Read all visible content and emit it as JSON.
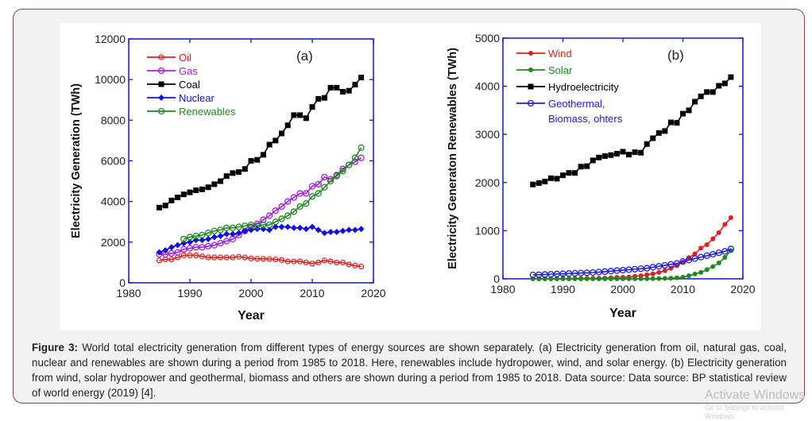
{
  "caption": {
    "label": "Figure 3:",
    "text": "World total electricity generation from different types of energy sources are shown separately. (a) Electricity generation from oil, natural gas, coal, nuclear and renewables are shown during a period from 1985 to 2018. Here, renewables include hydropower, wind, and solar energy. (b) Electricity generation from wind, solar hydropower and geothermal, biomass and others are shown during a period from 1985 to 2018. Data source: Data source: BP statistical review of world energy (2019) [4]."
  },
  "watermark": {
    "line1": "Activate Windows",
    "line2": "Go to Settings to activate Windows."
  },
  "chart_data": [
    {
      "type": "line",
      "panel_label": "(a)",
      "xlabel": "Year",
      "ylabel": "Electricity Generation (TWh)",
      "xlim": [
        1980,
        2020
      ],
      "ylim": [
        0,
        12000
      ],
      "xticks": [
        1980,
        1990,
        2000,
        2010,
        2020
      ],
      "yticks": [
        0,
        2000,
        4000,
        6000,
        8000,
        10000,
        12000
      ],
      "grid": false,
      "legend": "top-left",
      "axis_color": "#2222cc",
      "x": [
        1985,
        1986,
        1987,
        1988,
        1989,
        1990,
        1991,
        1992,
        1993,
        1994,
        1995,
        1996,
        1997,
        1998,
        1999,
        2000,
        2001,
        2002,
        2003,
        2004,
        2005,
        2006,
        2007,
        2008,
        2009,
        2010,
        2011,
        2012,
        2013,
        2014,
        2015,
        2016,
        2017,
        2018
      ],
      "series": [
        {
          "name": "Oil",
          "color": "#e02020",
          "marker": "open-circle-small",
          "values": [
            1100,
            1150,
            1150,
            1250,
            1350,
            1350,
            1350,
            1300,
            1250,
            1250,
            1250,
            1250,
            1250,
            1280,
            1250,
            1200,
            1180,
            1180,
            1170,
            1150,
            1120,
            1050,
            1050,
            1050,
            1000,
            950,
            1000,
            1100,
            1050,
            1000,
            1000,
            900,
            850,
            800
          ]
        },
        {
          "name": "Gas",
          "color": "#a020e0",
          "marker": "open-circle",
          "values": [
            1400,
            1400,
            1450,
            1500,
            1650,
            1700,
            1750,
            1750,
            1800,
            1850,
            1950,
            2050,
            2150,
            2350,
            2550,
            2750,
            2900,
            3100,
            3300,
            3550,
            3750,
            4000,
            4200,
            4400,
            4400,
            4750,
            4850,
            5200,
            5100,
            5300,
            5600,
            5800,
            5950,
            6150
          ]
        },
        {
          "name": "Coal",
          "color": "#000000",
          "marker": "filled-square",
          "values": [
            3700,
            3800,
            4050,
            4200,
            4350,
            4450,
            4550,
            4600,
            4700,
            4850,
            5000,
            5250,
            5400,
            5450,
            5600,
            6000,
            6050,
            6300,
            6800,
            7000,
            7350,
            7750,
            8250,
            8250,
            8100,
            8650,
            9050,
            9100,
            9600,
            9600,
            9400,
            9450,
            9750,
            10100
          ]
        },
        {
          "name": "Nuclear",
          "color": "#1010e0",
          "marker": "filled-diamond",
          "values": [
            1500,
            1600,
            1750,
            1850,
            1950,
            2000,
            2100,
            2100,
            2150,
            2250,
            2300,
            2400,
            2400,
            2450,
            2550,
            2600,
            2650,
            2650,
            2600,
            2750,
            2750,
            2750,
            2700,
            2700,
            2650,
            2750,
            2600,
            2450,
            2500,
            2500,
            2550,
            2600,
            2600,
            2650
          ]
        },
        {
          "name": "Renewables",
          "color": "#208a20",
          "marker": "open-circle",
          "values": [
            null,
            null,
            null,
            null,
            2150,
            2250,
            2300,
            2350,
            2450,
            2550,
            2600,
            2700,
            2700,
            2750,
            2800,
            2850,
            2800,
            2850,
            2850,
            3000,
            3150,
            3300,
            3500,
            3750,
            3900,
            4250,
            4400,
            4700,
            5000,
            5250,
            5500,
            5800,
            6150,
            6650
          ]
        }
      ]
    },
    {
      "type": "line",
      "panel_label": "(b)",
      "xlabel": "Year",
      "ylabel": "Electricity Generaton Renewables (TWh)",
      "xlim": [
        1980,
        2020
      ],
      "ylim": [
        0,
        5000
      ],
      "xticks": [
        1980,
        1990,
        2000,
        2010,
        2020
      ],
      "yticks": [
        0,
        1000,
        2000,
        3000,
        4000,
        5000
      ],
      "grid": false,
      "legend": "top-left",
      "axis_color": "#2222cc",
      "x": [
        1985,
        1986,
        1987,
        1988,
        1989,
        1990,
        1991,
        1992,
        1993,
        1994,
        1995,
        1996,
        1997,
        1998,
        1999,
        2000,
        2001,
        2002,
        2003,
        2004,
        2005,
        2006,
        2007,
        2008,
        2009,
        2010,
        2011,
        2012,
        2013,
        2014,
        2015,
        2016,
        2017,
        2018
      ],
      "series": [
        {
          "name": "Wind",
          "color": "#e02020",
          "marker": "filled-circle",
          "values": [
            0,
            0,
            0,
            0,
            4,
            4,
            5,
            6,
            7,
            9,
            10,
            12,
            15,
            21,
            31,
            31,
            38,
            52,
            63,
            85,
            104,
            133,
            170,
            220,
            275,
            345,
            440,
            520,
            640,
            710,
            830,
            960,
            1130,
            1270
          ]
        },
        {
          "name": "Solar",
          "color": "#208a20",
          "marker": "filled-circle",
          "values": [
            0,
            0,
            0,
            0,
            0,
            0,
            0,
            0,
            0,
            0,
            0,
            0,
            0,
            0,
            0,
            1,
            1,
            1,
            2,
            3,
            4,
            6,
            8,
            12,
            20,
            32,
            63,
            100,
            135,
            190,
            255,
            330,
            445,
            585
          ]
        },
        {
          "name": "Hydroelectricity",
          "color": "#000000",
          "marker": "filled-square",
          "values": [
            1960,
            1990,
            2020,
            2090,
            2080,
            2150,
            2200,
            2200,
            2330,
            2340,
            2460,
            2520,
            2550,
            2570,
            2600,
            2640,
            2580,
            2630,
            2620,
            2800,
            2920,
            3030,
            3070,
            3250,
            3240,
            3430,
            3500,
            3680,
            3790,
            3880,
            3880,
            4010,
            4060,
            4190
          ]
        },
        {
          "name": "Geothermal, Biomass, ohters",
          "name_lines": [
            "Geothermal,",
            "Biomass, ohters"
          ],
          "color": "#2020e0",
          "marker": "open-circle",
          "values": [
            80,
            85,
            90,
            95,
            100,
            105,
            110,
            115,
            120,
            125,
            130,
            140,
            150,
            160,
            170,
            180,
            190,
            200,
            210,
            220,
            240,
            260,
            280,
            300,
            320,
            360,
            390,
            420,
            450,
            480,
            510,
            540,
            570,
            620
          ]
        }
      ]
    }
  ]
}
